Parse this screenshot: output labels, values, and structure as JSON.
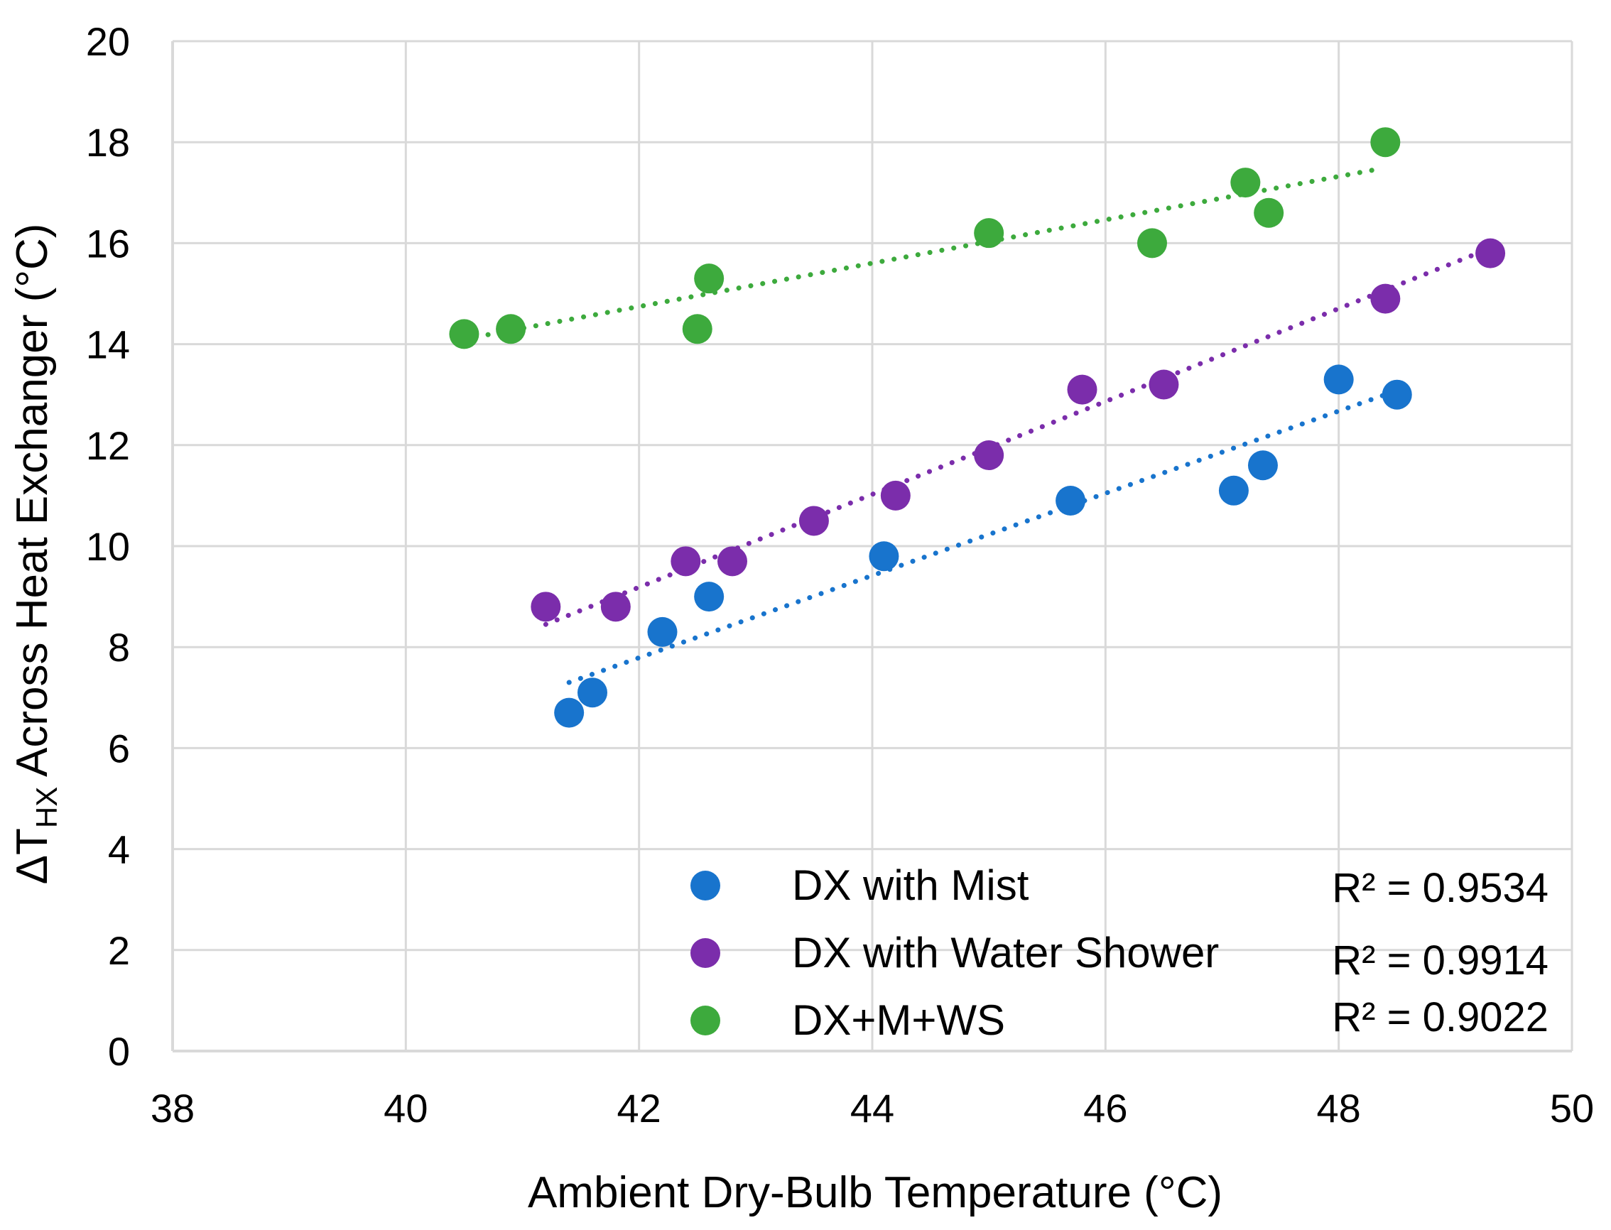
{
  "chart_data": {
    "type": "scatter",
    "title": "",
    "xlabel": "Ambient Dry-Bulb Temperature (°C)",
    "ylabel": {
      "prefix": "ΔT",
      "subscript": "HX",
      "suffix": " Across Heat Exchanger (°C)"
    },
    "xlim": [
      38,
      50
    ],
    "ylim": [
      0,
      20
    ],
    "x_ticks": [
      "38",
      "40",
      "42",
      "44",
      "46",
      "48",
      "50"
    ],
    "y_ticks": [
      "0",
      "2",
      "4",
      "6",
      "8",
      "10",
      "12",
      "14",
      "16",
      "18",
      "20"
    ],
    "grid": true,
    "legend_position": "bottom-right",
    "series": [
      {
        "name": "DX with Mist",
        "color": "#1874CD",
        "x": [
          41.4,
          41.6,
          42.2,
          42.6,
          44.1,
          45.7,
          47.1,
          47.35,
          48.0,
          48.5
        ],
        "y": [
          6.7,
          7.1,
          8.3,
          9.0,
          9.8,
          10.9,
          11.1,
          11.6,
          13.3,
          13.0
        ],
        "trendline": {
          "type": "linear",
          "x": [
            41.4,
            48.4
          ],
          "y": [
            7.3,
            13.0
          ],
          "style": "dotted"
        },
        "r2_label": "R² = 0.9534"
      },
      {
        "name": "DX with Water Shower",
        "color": "#7B2DAB",
        "x": [
          41.2,
          41.8,
          42.4,
          42.8,
          43.5,
          44.2,
          45.0,
          45.8,
          46.5,
          48.4,
          49.3
        ],
        "y": [
          8.8,
          8.8,
          9.7,
          9.7,
          10.5,
          11.0,
          11.8,
          13.1,
          13.2,
          14.9,
          15.8
        ],
        "trendline": {
          "type": "linear",
          "x": [
            41.2,
            49.3
          ],
          "y": [
            8.45,
            15.9
          ],
          "style": "dotted"
        },
        "r2_label": "R² = 0.9914"
      },
      {
        "name": "DX+M+WS",
        "color": "#3DAA3D",
        "x": [
          40.5,
          40.9,
          42.5,
          42.6,
          45.0,
          46.4,
          47.2,
          47.4,
          48.4
        ],
        "y": [
          14.2,
          14.3,
          14.3,
          15.3,
          16.2,
          16.0,
          17.2,
          16.6,
          18.0
        ],
        "trendline": {
          "type": "linear",
          "x": [
            40.5,
            48.3
          ],
          "y": [
            14.1,
            17.45
          ],
          "style": "dotted"
        },
        "r2_label": "R² = 0.9022"
      }
    ]
  }
}
